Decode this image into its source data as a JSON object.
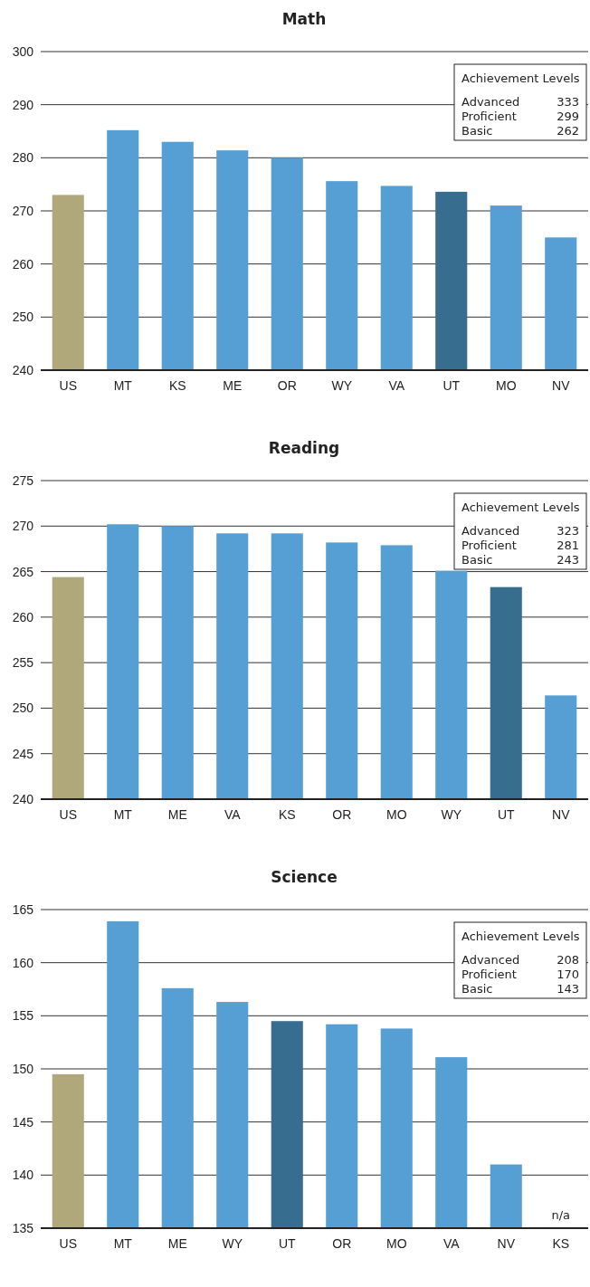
{
  "chart_data": [
    {
      "type": "bar",
      "title": "Math",
      "categories": [
        "US",
        "MT",
        "KS",
        "ME",
        "OR",
        "WY",
        "VA",
        "UT",
        "MO",
        "NV"
      ],
      "values": [
        273.0,
        285.2,
        283.0,
        281.4,
        280.0,
        275.6,
        274.7,
        273.6,
        271.0,
        265.0
      ],
      "colors": [
        "#b0a87a",
        "#569fd4",
        "#569fd4",
        "#569fd4",
        "#569fd4",
        "#569fd4",
        "#569fd4",
        "#376e90",
        "#569fd4",
        "#569fd4"
      ],
      "ylim": [
        240,
        300
      ],
      "yticks": [
        240,
        250,
        260,
        270,
        280,
        290,
        300
      ],
      "grid": "y",
      "annotations": [
        "Achievement Levels",
        "Advanced 333",
        "Proficient 299",
        "Basic 262"
      ]
    },
    {
      "type": "bar",
      "title": "Reading",
      "categories": [
        "US",
        "MT",
        "ME",
        "VA",
        "KS",
        "OR",
        "MO",
        "WY",
        "UT",
        "NV"
      ],
      "values": [
        264.4,
        270.2,
        270.0,
        269.2,
        269.2,
        268.2,
        267.9,
        265.1,
        263.3,
        251.4
      ],
      "colors": [
        "#b0a87a",
        "#569fd4",
        "#569fd4",
        "#569fd4",
        "#569fd4",
        "#569fd4",
        "#569fd4",
        "#569fd4",
        "#376e90",
        "#569fd4"
      ],
      "ylim": [
        240,
        275
      ],
      "yticks": [
        240,
        245,
        250,
        255,
        260,
        265,
        270,
        275
      ],
      "grid": "y",
      "annotations": [
        "Achievement Levels",
        "Advanced 323",
        "Proficient 281",
        "Basic 243"
      ]
    },
    {
      "type": "bar",
      "title": "Science",
      "categories": [
        "US",
        "MT",
        "ME",
        "WY",
        "UT",
        "OR",
        "MO",
        "VA",
        "NV",
        "KS"
      ],
      "values": [
        149.5,
        163.9,
        157.6,
        156.3,
        154.5,
        154.2,
        153.8,
        151.1,
        141.0,
        null
      ],
      "colors": [
        "#b0a87a",
        "#569fd4",
        "#569fd4",
        "#569fd4",
        "#376e90",
        "#569fd4",
        "#569fd4",
        "#569fd4",
        "#569fd4",
        null
      ],
      "ylim": [
        135,
        165
      ],
      "yticks": [
        135,
        140,
        145,
        150,
        155,
        160,
        165
      ],
      "grid": "y",
      "annotations": [
        "Achievement Levels",
        "Advanced 208",
        "Proficient 170",
        "Basic 143",
        "n/a"
      ]
    }
  ]
}
